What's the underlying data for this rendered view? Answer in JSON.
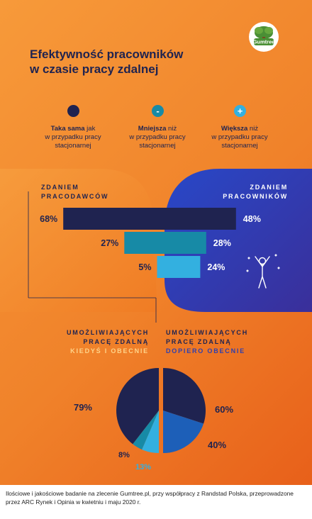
{
  "header": {
    "title_line1": "Efektywność pracowników",
    "title_line2": "w czasie pracy zdalnej",
    "logo_text": "Gumtree"
  },
  "legend": [
    {
      "symbol": "",
      "bold": "Taka sama",
      "rest1": " jak",
      "line2": "w przypadku pracy",
      "line3": "stacjonarnej",
      "color": "#1f2350"
    },
    {
      "symbol": "-",
      "bold": "Mniejsza",
      "rest1": " niż",
      "line2": "w przypadku pracy",
      "line3": "stacjonarnej",
      "color": "#178aa6"
    },
    {
      "symbol": "+",
      "bold": "Większa",
      "rest1": " niż",
      "line2": "w przypadku pracy",
      "line3": "stacjonarnej",
      "color": "#33b0e0"
    }
  ],
  "employers": {
    "line1": "ZDANIEM",
    "line2": "PRACODAWCÓW"
  },
  "employees": {
    "line1": "ZDANIEM",
    "line2": "PRACOWNIKÓW"
  },
  "pie_left": {
    "line1": "UMOŻLIWIAJĄCYCH",
    "line2": "PRACĘ ZDALNĄ",
    "line3": "KIEDYŚ I OBECNIE"
  },
  "pie_right": {
    "line1": "UMOŻLIWIAJĄCYCH",
    "line2": "PRACĘ ZDALNĄ",
    "line3": "DOPIERO OBECNIE"
  },
  "colors": {
    "same": "#1f2350",
    "less": "#178aa6",
    "more": "#33b0e0",
    "orange": "#f0822a",
    "blue": "#2848c8",
    "pie_less_right": "#1d5fb8",
    "section_highlight_left": "#ffd48a",
    "section_highlight_right": "#2d3fb0"
  },
  "chart_data": [
    {
      "type": "bar",
      "title": "",
      "categories": [
        "Taka sama",
        "Mniejsza",
        "Większa"
      ],
      "series": [
        {
          "name": "ZDANIEM PRACODAWCÓW",
          "values": [
            68,
            27,
            5
          ],
          "labels": [
            "68%",
            "27%",
            "5%"
          ]
        },
        {
          "name": "ZDANIEM PRACOWNIKÓW",
          "values": [
            48,
            28,
            24
          ],
          "labels": [
            "48%",
            "28%",
            "24%"
          ]
        }
      ]
    },
    {
      "type": "pie",
      "title": "",
      "series": [
        {
          "name": "UMOŻLIWIAJĄCYCH PRACĘ ZDALNĄ KIEDYŚ I OBECNIE",
          "categories": [
            "Taka sama",
            "Mniejsza",
            "Większa"
          ],
          "values": [
            79,
            8,
            13
          ],
          "labels": [
            "79%",
            "8%",
            "13%"
          ]
        },
        {
          "name": "UMOŻLIWIAJĄCYCH PRACĘ ZDALNĄ DOPIERO OBECNIE",
          "categories": [
            "Taka sama",
            "Mniejsza"
          ],
          "values": [
            60,
            40
          ],
          "labels": [
            "60%",
            "40%"
          ]
        }
      ]
    }
  ],
  "footnote": "Ilościowe i jakościowe badanie na zlecenie Gumtree.pl, przy współpracy z Randstad Polska, przeprowadzone przez ARC Rynek i Opinia w kwietniu i maju 2020 r."
}
